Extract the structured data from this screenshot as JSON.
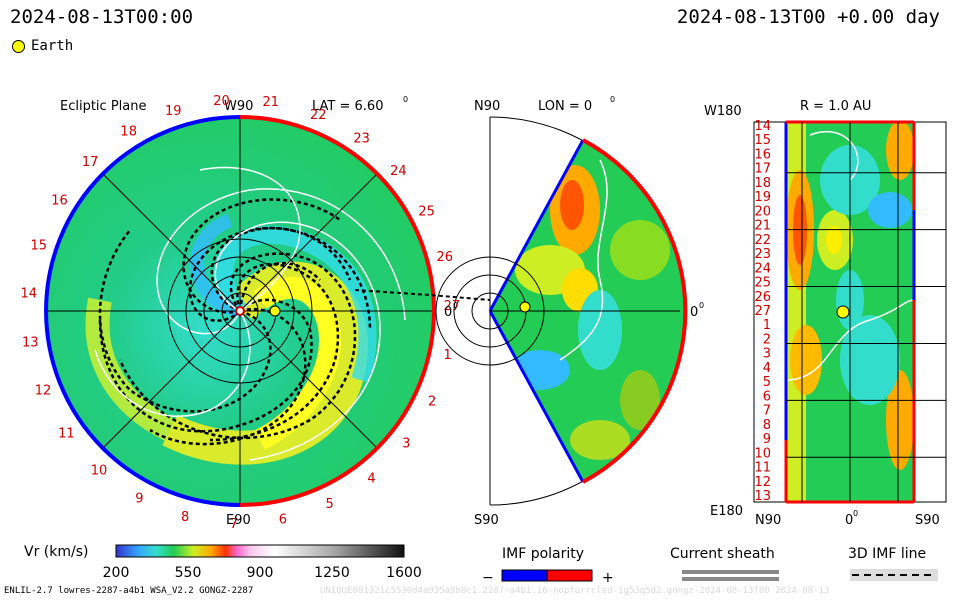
{
  "header": {
    "datetime_left": "2024-08-13T00:00",
    "datetime_right": "2024-08-13T00 +0.00 day"
  },
  "legend": {
    "earth_label": "Earth"
  },
  "colors": {
    "earth": "#ffff00",
    "polarity_negative": "#0000ff",
    "polarity_positive": "#ff0000",
    "tick_label": "#cc0000",
    "sheath": "#888888"
  },
  "chart_data": [
    {
      "type": "heatmap",
      "panel": "ecliptic-plane",
      "title": "Ecliptic Plane",
      "top_label": "W90",
      "bottom_label": "E90",
      "lat_label": "LAT = 6.60",
      "lat_superscript": "0",
      "right_label": "0",
      "right_superscript": "0",
      "rim_ticks": [
        "20",
        "21",
        "22",
        "23",
        "24",
        "25",
        "26",
        "27",
        "1",
        "2",
        "3",
        "4",
        "5",
        "6",
        "7",
        "8",
        "9",
        "10",
        "11",
        "12",
        "13",
        "14",
        "15",
        "16",
        "17",
        "18",
        "19"
      ]
    },
    {
      "type": "heatmap",
      "panel": "meridional-plane",
      "top_left_label": "N90",
      "lon_label": "LON = 0",
      "lon_superscript": "0",
      "right_label": "0",
      "right_superscript": "0",
      "bottom_label": "S90"
    },
    {
      "type": "heatmap",
      "panel": "radial-surface",
      "corner_label_top": "W180",
      "r_label": "R = 1.0 AU",
      "corner_label_bottom": "E180",
      "y_ticks": [
        "14",
        "15",
        "16",
        "17",
        "18",
        "19",
        "20",
        "21",
        "22",
        "23",
        "24",
        "25",
        "26",
        "27",
        "1",
        "2",
        "3",
        "4",
        "5",
        "6",
        "7",
        "8",
        "9",
        "10",
        "11",
        "12",
        "13"
      ],
      "x_ticks": [
        "N90",
        "0",
        "S90"
      ],
      "x_superscript": "0"
    }
  ],
  "colorbar": {
    "label": "Vr (km/s)",
    "ticks": [
      "200",
      "550",
      "900",
      "1250",
      "1600"
    ],
    "range": [
      200,
      1600
    ]
  },
  "bottom_legend": {
    "imf_polarity": "IMF polarity",
    "minus": "−",
    "plus": "+",
    "current_sheath": "Current sheath",
    "imf_line": "3D IMF line"
  },
  "footer": {
    "left": "ENLIL-2.7 lowres-2287-a4b1 WSA_V2.2 GONGZ-2287",
    "right": "UNIQUE081321c5530d4a935a9b0c1.2287-a4b1.16-nopfurrcled-1g53q5d2.gongz-2024-08-13T00 2024-08-13"
  }
}
